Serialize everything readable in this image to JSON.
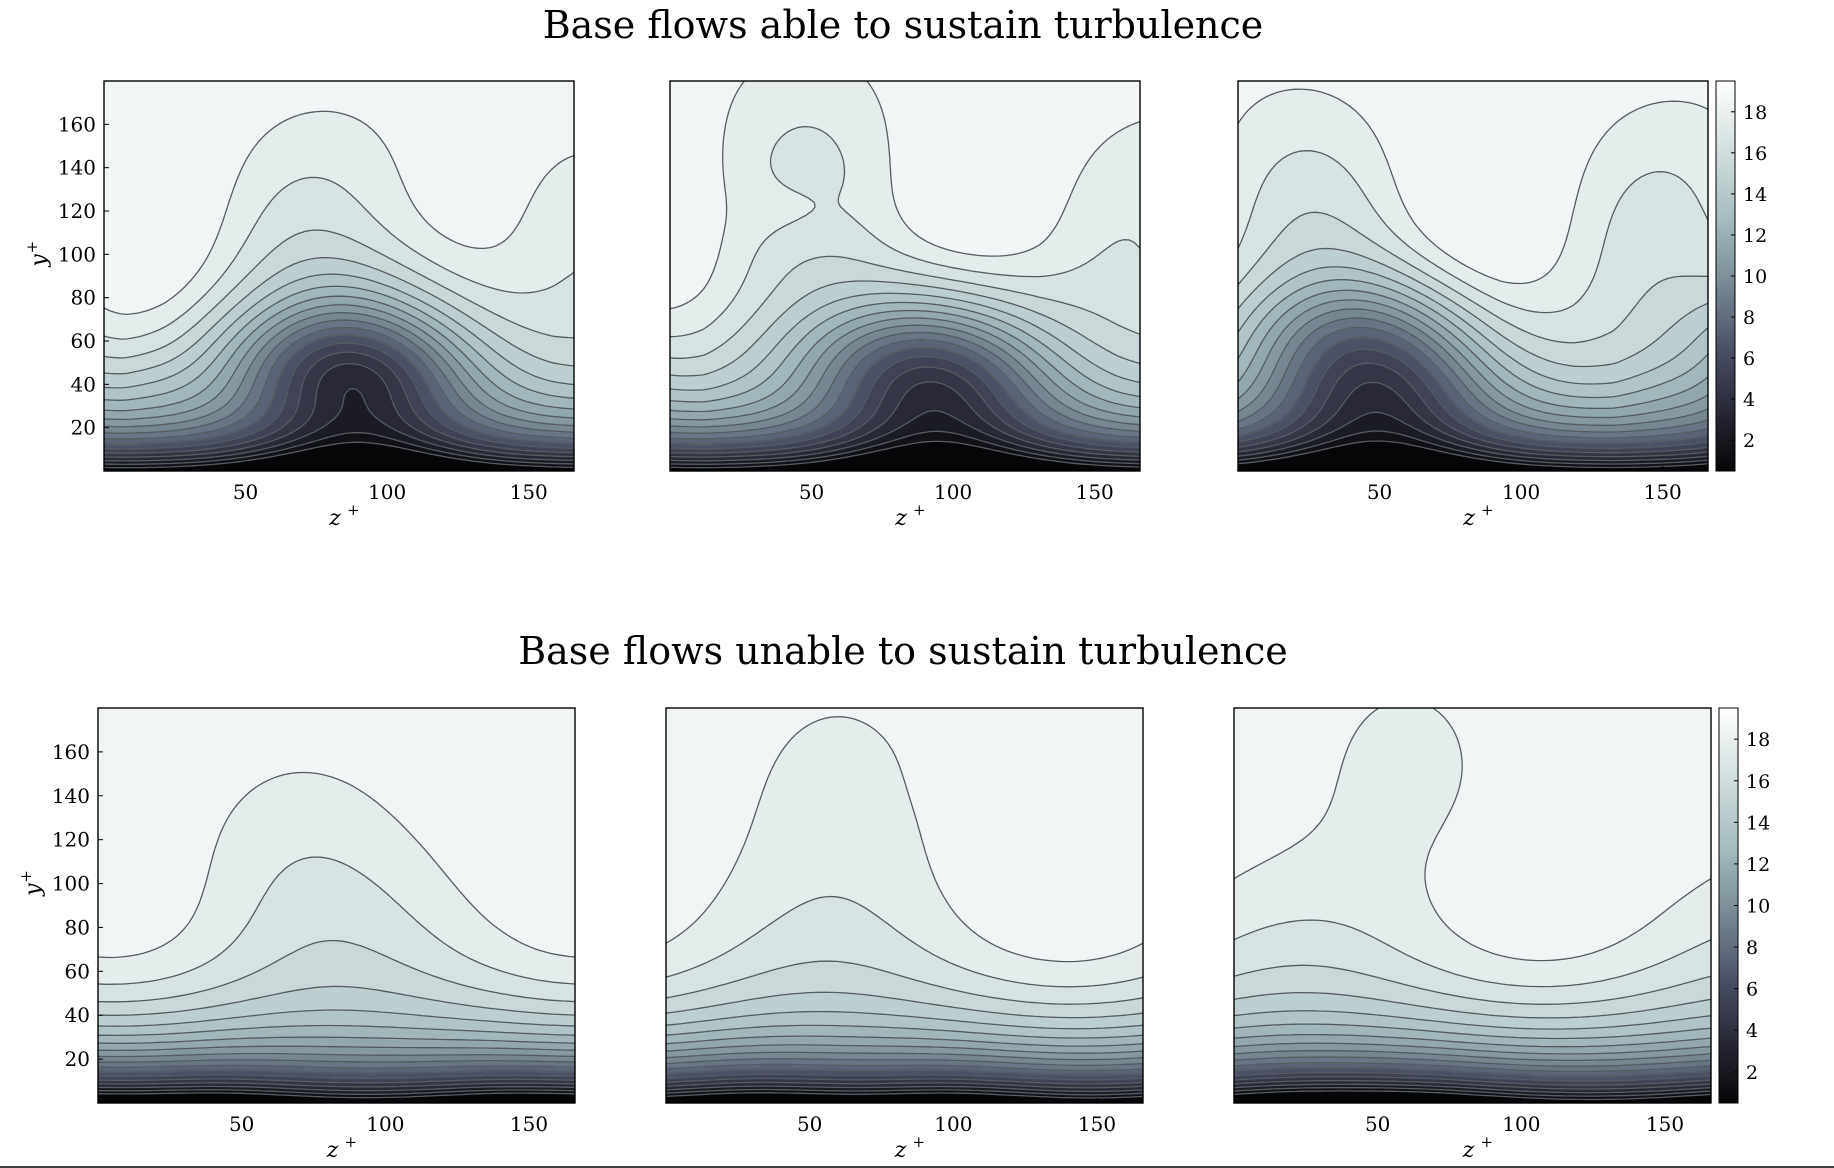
{
  "figure": {
    "colormap": {
      "name": "bone",
      "stops": [
        "#000000",
        "#252532",
        "#4c5166",
        "#7a8c96",
        "#a9bfc2",
        "#d4e0e0",
        "#ffffff"
      ]
    },
    "rows": [
      {
        "title": "Base flows able to sustain turbulence",
        "panels": [
          {
            "xlabel": "z",
            "xlabel_sup": "+",
            "ylabel": "y",
            "ylabel_sup": "+"
          },
          {
            "xlabel": "z",
            "xlabel_sup": "+"
          },
          {
            "xlabel": "z",
            "xlabel_sup": "+"
          }
        ]
      },
      {
        "title": "Base flows unable to sustain turbulence",
        "panels": [
          {
            "xlabel": "z",
            "xlabel_sup": "+",
            "ylabel": "y",
            "ylabel_sup": "+"
          },
          {
            "xlabel": "z",
            "xlabel_sup": "+"
          },
          {
            "xlabel": "z",
            "xlabel_sup": "+"
          }
        ]
      }
    ],
    "colorbar": {
      "ticks": [
        "2",
        "4",
        "6",
        "8",
        "10",
        "12",
        "14",
        "16",
        "18"
      ],
      "range": [
        0.5,
        19.5
      ]
    }
  },
  "chart_data": {
    "type": "heatmap",
    "subtype": "filled contour",
    "grid": false,
    "value_range": [
      0,
      19.5
    ],
    "contour_levels": [
      1,
      2,
      3,
      4,
      5,
      6,
      7,
      8,
      9,
      10,
      11,
      12,
      13,
      14,
      15,
      16,
      17,
      18
    ],
    "x_range": [
      0,
      166
    ],
    "y_range": [
      0,
      180
    ],
    "x_ticks": [
      50,
      100,
      150
    ],
    "y_ticks": [
      20,
      40,
      60,
      80,
      100,
      120,
      140,
      160
    ],
    "panels": [
      {
        "row": 1,
        "col": 1,
        "min_x_at_wall": 90,
        "low_speed_regions": [
          {
            "x": 90,
            "y": 40
          },
          {
            "x": 75,
            "y": 55
          }
        ],
        "features": [
          {
            "x": 15,
            "y": 40,
            "level": 14
          }
        ],
        "top_dip_x": 105,
        "top_dip_y": 120
      },
      {
        "row": 1,
        "col": 2,
        "min_x_at_wall": 95,
        "low_speed_regions": [
          {
            "x": 95,
            "y": 35
          },
          {
            "x": 75,
            "y": 55
          }
        ],
        "features": [
          {
            "x": 45,
            "y": 120,
            "level": 17
          }
        ],
        "top_dip_x": 48,
        "top_dip_y": 150
      },
      {
        "row": 1,
        "col": 3,
        "min_x_at_wall": 50,
        "low_speed_regions": [
          {
            "x": 50,
            "y": 35
          },
          {
            "x": 35,
            "y": 65
          }
        ],
        "features": [
          {
            "x": 100,
            "y": 80,
            "level": 15
          },
          {
            "x": 150,
            "y": 35,
            "level": 14
          }
        ],
        "top_dip_x": 10,
        "top_dip_y": 125
      }
    ],
    "rows": [
      {
        "title": "Base flows able to sustain turbulence"
      },
      {
        "title": "Base flows unable to sustain turbulence"
      }
    ],
    "panels_row2": [
      {
        "row": 2,
        "col": 1,
        "wall_minima_x": [
          40,
          145
        ],
        "features": [
          {
            "x": 0,
            "y": 95,
            "level": 14
          },
          {
            "x": 166,
            "y": 95,
            "level": 14
          }
        ],
        "top_dip_x": 70,
        "top_dip_y": 115
      },
      {
        "row": 2,
        "col": 2,
        "wall_minima_x": [
          30,
          100
        ],
        "features": [
          {
            "x": 120,
            "y": 150,
            "level": 18
          }
        ],
        "top_dip_x": 60,
        "top_dip_y": 150
      },
      {
        "row": 2,
        "col": 3,
        "wall_minima_x": [
          20,
          65
        ],
        "features": [
          {
            "x": 155,
            "y": 75,
            "level": 15
          }
        ],
        "top_dip_x": 60,
        "top_dip_y": 160
      }
    ]
  }
}
